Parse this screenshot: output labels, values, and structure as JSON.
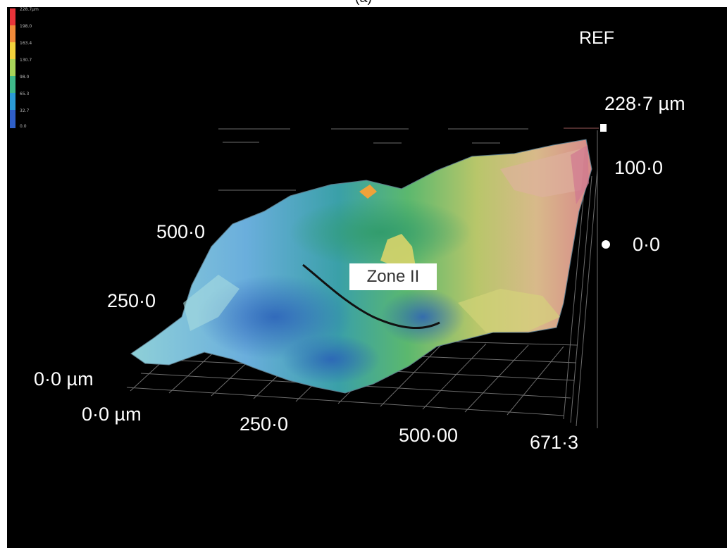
{
  "caption": "(a)",
  "sample_label": "REF",
  "z_axis": {
    "max_label": "228·7 µm",
    "tick_100": "100·0",
    "tick_0": "0·0"
  },
  "y_axis": {
    "tick_500": "500·0",
    "tick_250": "250·0",
    "tick_0": "0·0 µm"
  },
  "x_axis": {
    "tick_0": "0·0 µm",
    "tick_250": "250·0",
    "tick_500": "500·00",
    "tick_max": "671·3"
  },
  "zone_label": "Zone II",
  "color_scale": {
    "labels": [
      "228.7µm",
      "198.0",
      "163.4",
      "130.7",
      "98.0",
      "65.3",
      "32.7",
      "0.0"
    ],
    "colors": [
      "#e8343a",
      "#f08a3a",
      "#f2d23c",
      "#a8d45a",
      "#3fb98a",
      "#2b9ad6",
      "#2f5fc8"
    ]
  }
}
